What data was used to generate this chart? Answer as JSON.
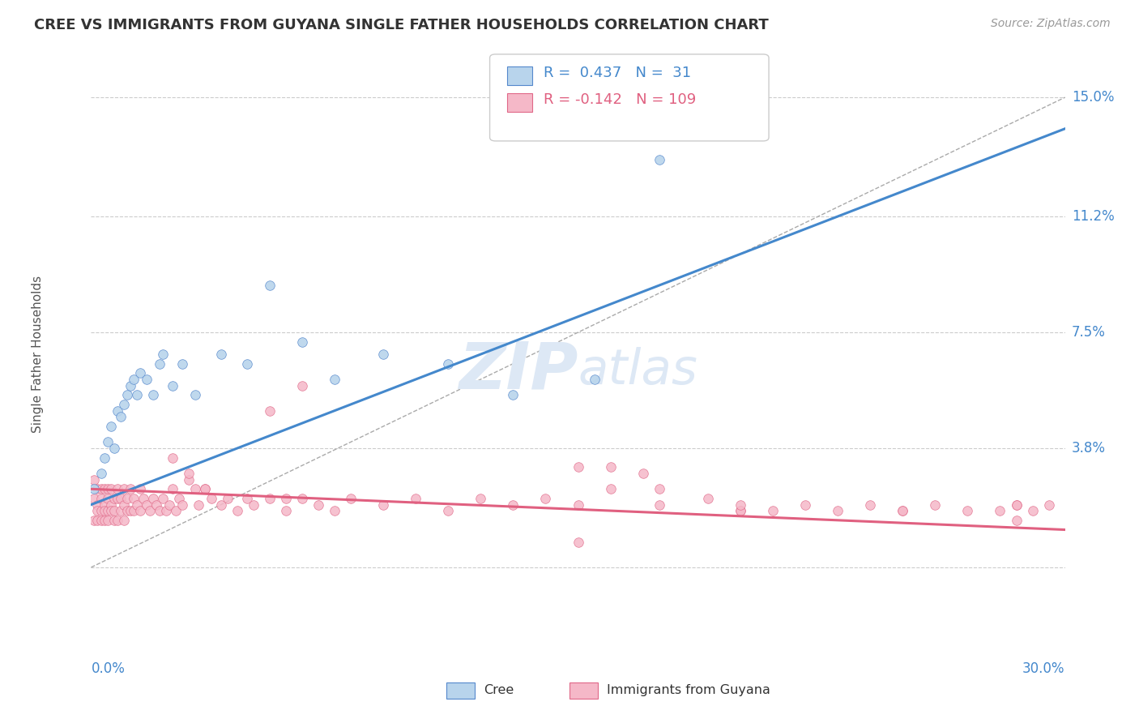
{
  "title": "CREE VS IMMIGRANTS FROM GUYANA SINGLE FATHER HOUSEHOLDS CORRELATION CHART",
  "source": "Source: ZipAtlas.com",
  "ylabel": "Single Father Households",
  "xlim": [
    0.0,
    0.3
  ],
  "ylim": [
    -0.022,
    0.158
  ],
  "ytick_positions": [
    0.0,
    0.038,
    0.075,
    0.112,
    0.15
  ],
  "ytick_labels": [
    "",
    "3.8%",
    "7.5%",
    "11.2%",
    "15.0%"
  ],
  "cree_color": "#b8d4ec",
  "cree_edge_color": "#5588cc",
  "guyana_color": "#f5b8c8",
  "guyana_edge_color": "#e06888",
  "cree_line_color": "#4488cc",
  "guyana_line_color": "#e06080",
  "axis_label_color": "#4488cc",
  "title_color": "#333333",
  "source_color": "#999999",
  "grid_color": "#cccccc",
  "dashed_color": "#aaaaaa",
  "watermark_color": "#dde8f5",
  "legend_bg": "#ffffff",
  "legend_border": "#cccccc",
  "cree_R": "0.437",
  "cree_N": "31",
  "guyana_R": "-0.142",
  "guyana_N": "109",
  "background_color": "#ffffff",
  "cree_x": [
    0.001,
    0.003,
    0.004,
    0.005,
    0.006,
    0.007,
    0.008,
    0.009,
    0.01,
    0.011,
    0.012,
    0.013,
    0.014,
    0.015,
    0.017,
    0.019,
    0.021,
    0.022,
    0.025,
    0.028,
    0.032,
    0.04,
    0.048,
    0.055,
    0.065,
    0.075,
    0.09,
    0.11,
    0.13,
    0.155,
    0.175
  ],
  "cree_y": [
    0.025,
    0.03,
    0.035,
    0.04,
    0.045,
    0.038,
    0.05,
    0.048,
    0.052,
    0.055,
    0.058,
    0.06,
    0.055,
    0.062,
    0.06,
    0.055,
    0.065,
    0.068,
    0.058,
    0.065,
    0.055,
    0.068,
    0.065,
    0.09,
    0.072,
    0.06,
    0.068,
    0.065,
    0.055,
    0.06,
    0.13
  ],
  "guyana_x": [
    0.001,
    0.001,
    0.001,
    0.002,
    0.002,
    0.002,
    0.002,
    0.003,
    0.003,
    0.003,
    0.003,
    0.004,
    0.004,
    0.004,
    0.004,
    0.005,
    0.005,
    0.005,
    0.005,
    0.006,
    0.006,
    0.006,
    0.007,
    0.007,
    0.007,
    0.008,
    0.008,
    0.008,
    0.009,
    0.009,
    0.01,
    0.01,
    0.01,
    0.011,
    0.011,
    0.012,
    0.012,
    0.013,
    0.013,
    0.014,
    0.015,
    0.015,
    0.016,
    0.017,
    0.018,
    0.019,
    0.02,
    0.021,
    0.022,
    0.023,
    0.024,
    0.025,
    0.026,
    0.027,
    0.028,
    0.03,
    0.032,
    0.033,
    0.035,
    0.037,
    0.04,
    0.042,
    0.045,
    0.048,
    0.05,
    0.055,
    0.06,
    0.065,
    0.07,
    0.075,
    0.08,
    0.09,
    0.1,
    0.11,
    0.12,
    0.13,
    0.14,
    0.15,
    0.16,
    0.175,
    0.19,
    0.2,
    0.21,
    0.22,
    0.23,
    0.24,
    0.25,
    0.26,
    0.27,
    0.28,
    0.285,
    0.29,
    0.295,
    0.055,
    0.065,
    0.16,
    0.15,
    0.2,
    0.25,
    0.17,
    0.175,
    0.2,
    0.285,
    0.025,
    0.03,
    0.035,
    0.06,
    0.15,
    0.285
  ],
  "guyana_y": [
    0.028,
    0.022,
    0.015,
    0.025,
    0.02,
    0.018,
    0.015,
    0.025,
    0.022,
    0.018,
    0.015,
    0.025,
    0.02,
    0.018,
    0.015,
    0.025,
    0.022,
    0.018,
    0.015,
    0.025,
    0.02,
    0.018,
    0.022,
    0.018,
    0.015,
    0.025,
    0.022,
    0.015,
    0.022,
    0.018,
    0.025,
    0.02,
    0.015,
    0.022,
    0.018,
    0.025,
    0.018,
    0.022,
    0.018,
    0.02,
    0.025,
    0.018,
    0.022,
    0.02,
    0.018,
    0.022,
    0.02,
    0.018,
    0.022,
    0.018,
    0.02,
    0.025,
    0.018,
    0.022,
    0.02,
    0.028,
    0.025,
    0.02,
    0.025,
    0.022,
    0.02,
    0.022,
    0.018,
    0.022,
    0.02,
    0.022,
    0.018,
    0.022,
    0.02,
    0.018,
    0.022,
    0.02,
    0.022,
    0.018,
    0.022,
    0.02,
    0.022,
    0.032,
    0.025,
    0.02,
    0.022,
    0.018,
    0.018,
    0.02,
    0.018,
    0.02,
    0.018,
    0.02,
    0.018,
    0.018,
    0.02,
    0.018,
    0.02,
    0.05,
    0.058,
    0.032,
    0.008,
    0.018,
    0.018,
    0.03,
    0.025,
    0.02,
    0.02,
    0.035,
    0.03,
    0.025,
    0.022,
    0.02,
    0.015
  ]
}
